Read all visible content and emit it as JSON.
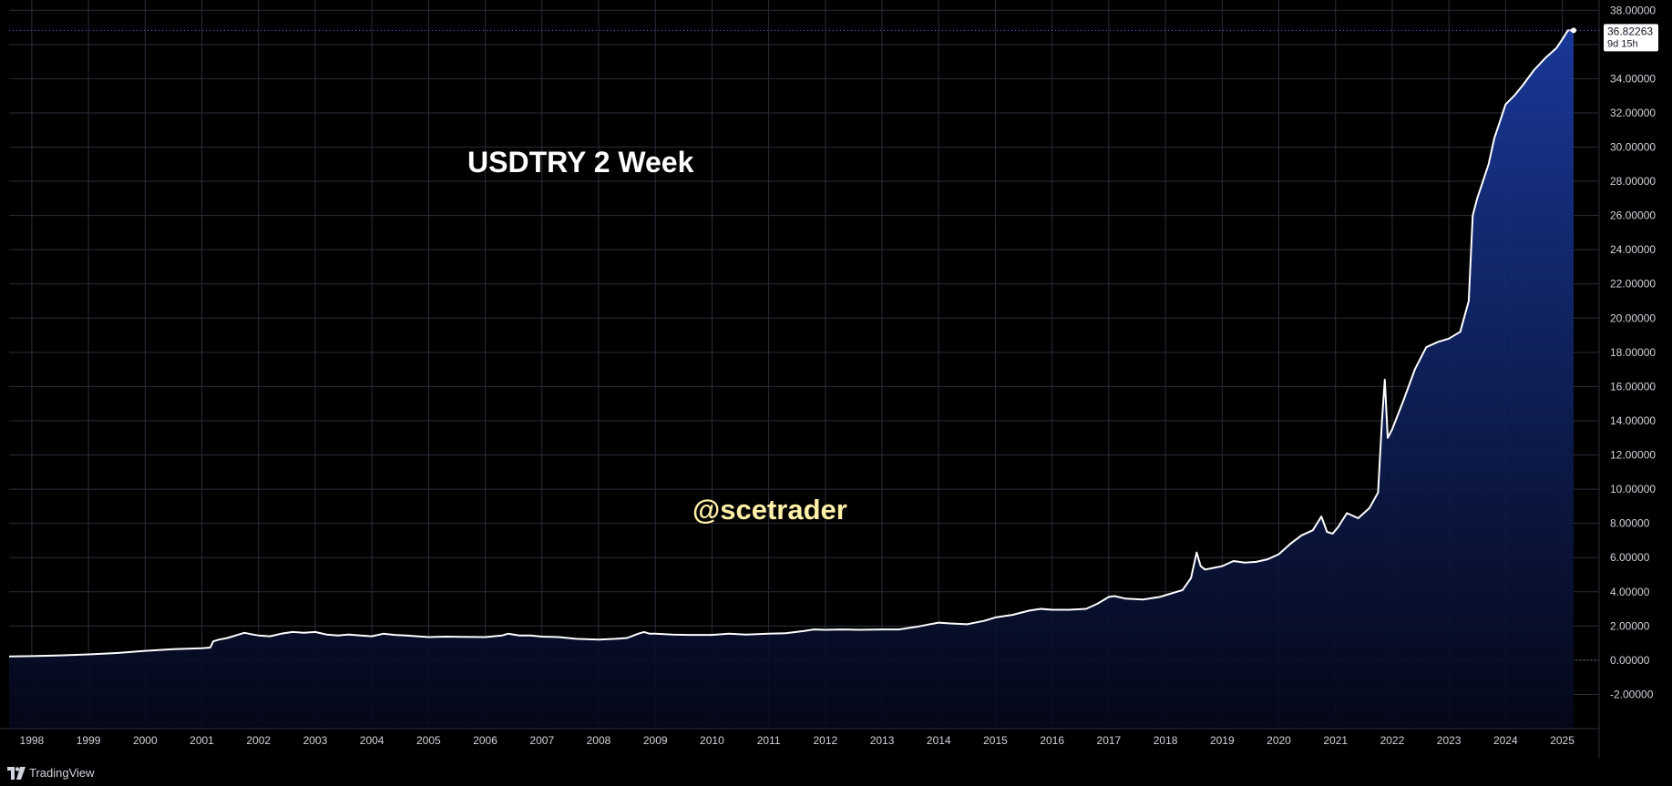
{
  "chart_data": {
    "type": "area",
    "title": "USDTRY 2 Week",
    "watermark": "@scetrader",
    "xlabel": "",
    "ylabel": "",
    "x_ticks": [
      "1998",
      "1999",
      "2000",
      "2001",
      "2002",
      "2003",
      "2004",
      "2005",
      "2006",
      "2007",
      "2008",
      "2009",
      "2010",
      "2011",
      "2012",
      "2013",
      "2014",
      "2015",
      "2016",
      "2017",
      "2018",
      "2019",
      "2020",
      "2021",
      "2022",
      "2023",
      "2024",
      "2025"
    ],
    "y_ticks": [
      "-2.00000",
      "0.00000",
      "2.00000",
      "4.00000",
      "6.00000",
      "8.00000",
      "10.00000",
      "12.00000",
      "14.00000",
      "16.00000",
      "18.00000",
      "20.00000",
      "22.00000",
      "24.00000",
      "26.00000",
      "28.00000",
      "30.00000",
      "32.00000",
      "34.00000",
      "36.00000",
      "38.00000"
    ],
    "ylim": [
      -4,
      38.6
    ],
    "xlim": [
      1997.6,
      2025.65
    ],
    "grid": true,
    "last_value_label": "36.82263",
    "countdown_label": "9d 15h",
    "colors": {
      "line": "#ffffff",
      "area_top": "#1a3a9e",
      "area_bottom": "#05081a",
      "last_price_line": "#7b5cff",
      "zero_line": "#787b86",
      "grid": "#2a2e39"
    },
    "series": [
      {
        "x": [
          1997.6,
          1998.0,
          1998.5,
          1999.0,
          1999.5,
          2000.0,
          2000.5,
          2001.0,
          2001.15,
          2001.2,
          2001.3,
          2001.45,
          2001.6,
          2001.75,
          2001.9,
          2002.0,
          2002.2,
          2002.4,
          2002.6,
          2002.8,
          2003.0,
          2003.2,
          2003.4,
          2003.6,
          2003.8,
          2004.0,
          2004.2,
          2004.4,
          2004.6,
          2004.8,
          2005.0,
          2005.3,
          2005.6,
          2006.0,
          2006.3,
          2006.4,
          2006.6,
          2006.8,
          2007.0,
          2007.3,
          2007.6,
          2008.0,
          2008.3,
          2008.5,
          2008.7,
          2008.8,
          2008.9,
          2009.0,
          2009.3,
          2009.6,
          2010.0,
          2010.3,
          2010.6,
          2011.0,
          2011.3,
          2011.6,
          2011.8,
          2012.0,
          2012.3,
          2012.6,
          2013.0,
          2013.3,
          2013.6,
          2014.0,
          2014.2,
          2014.5,
          2014.8,
          2015.0,
          2015.3,
          2015.6,
          2015.8,
          2016.0,
          2016.3,
          2016.6,
          2016.8,
          2017.0,
          2017.1,
          2017.3,
          2017.6,
          2017.9,
          2018.0,
          2018.3,
          2018.45,
          2018.55,
          2018.62,
          2018.7,
          2018.85,
          2019.0,
          2019.2,
          2019.4,
          2019.6,
          2019.8,
          2020.0,
          2020.2,
          2020.4,
          2020.6,
          2020.75,
          2020.85,
          2020.95,
          2021.05,
          2021.2,
          2021.4,
          2021.6,
          2021.75,
          2021.82,
          2021.87,
          2021.92,
          2022.0,
          2022.2,
          2022.4,
          2022.6,
          2022.8,
          2023.0,
          2023.2,
          2023.35,
          2023.42,
          2023.5,
          2023.6,
          2023.7,
          2023.8,
          2024.0,
          2024.15,
          2024.3,
          2024.5,
          2024.7,
          2024.9,
          2025.0,
          2025.1,
          2025.2
        ],
        "values": [
          0.22,
          0.24,
          0.28,
          0.34,
          0.42,
          0.55,
          0.65,
          0.7,
          0.74,
          1.1,
          1.2,
          1.3,
          1.45,
          1.6,
          1.5,
          1.45,
          1.4,
          1.55,
          1.65,
          1.6,
          1.65,
          1.5,
          1.45,
          1.5,
          1.45,
          1.4,
          1.55,
          1.48,
          1.45,
          1.4,
          1.35,
          1.38,
          1.36,
          1.35,
          1.45,
          1.55,
          1.45,
          1.45,
          1.38,
          1.35,
          1.25,
          1.2,
          1.25,
          1.3,
          1.55,
          1.65,
          1.55,
          1.55,
          1.5,
          1.48,
          1.48,
          1.55,
          1.5,
          1.55,
          1.58,
          1.7,
          1.8,
          1.78,
          1.8,
          1.78,
          1.8,
          1.8,
          1.95,
          2.2,
          2.15,
          2.1,
          2.3,
          2.5,
          2.65,
          2.9,
          3.0,
          2.95,
          2.95,
          3.0,
          3.3,
          3.7,
          3.75,
          3.6,
          3.55,
          3.7,
          3.8,
          4.1,
          4.8,
          6.3,
          5.5,
          5.3,
          5.4,
          5.5,
          5.8,
          5.7,
          5.75,
          5.9,
          6.2,
          6.8,
          7.3,
          7.6,
          8.4,
          7.5,
          7.4,
          7.8,
          8.6,
          8.3,
          8.9,
          9.8,
          14.0,
          16.4,
          13.0,
          13.5,
          15.2,
          17.0,
          18.3,
          18.6,
          18.8,
          19.2,
          21.0,
          26.0,
          27.0,
          28.0,
          29.0,
          30.5,
          32.5,
          33.0,
          33.6,
          34.5,
          35.2,
          35.8,
          36.3,
          36.82,
          36.82
        ]
      }
    ]
  },
  "footer": {
    "brand": "TradingView"
  }
}
